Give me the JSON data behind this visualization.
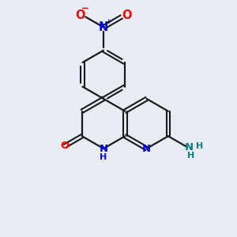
{
  "bg_color": "#e8edf5",
  "bond_color": "#1a1a1a",
  "n_color": "#0000ff",
  "o_color": "#ff0000",
  "nh2_color": "#008080",
  "lw": 1.6,
  "fs": 9.5,
  "fig_size": [
    3.0,
    3.0
  ],
  "dpi": 100,
  "xlim": [
    0,
    10
  ],
  "ylim": [
    0,
    10
  ]
}
